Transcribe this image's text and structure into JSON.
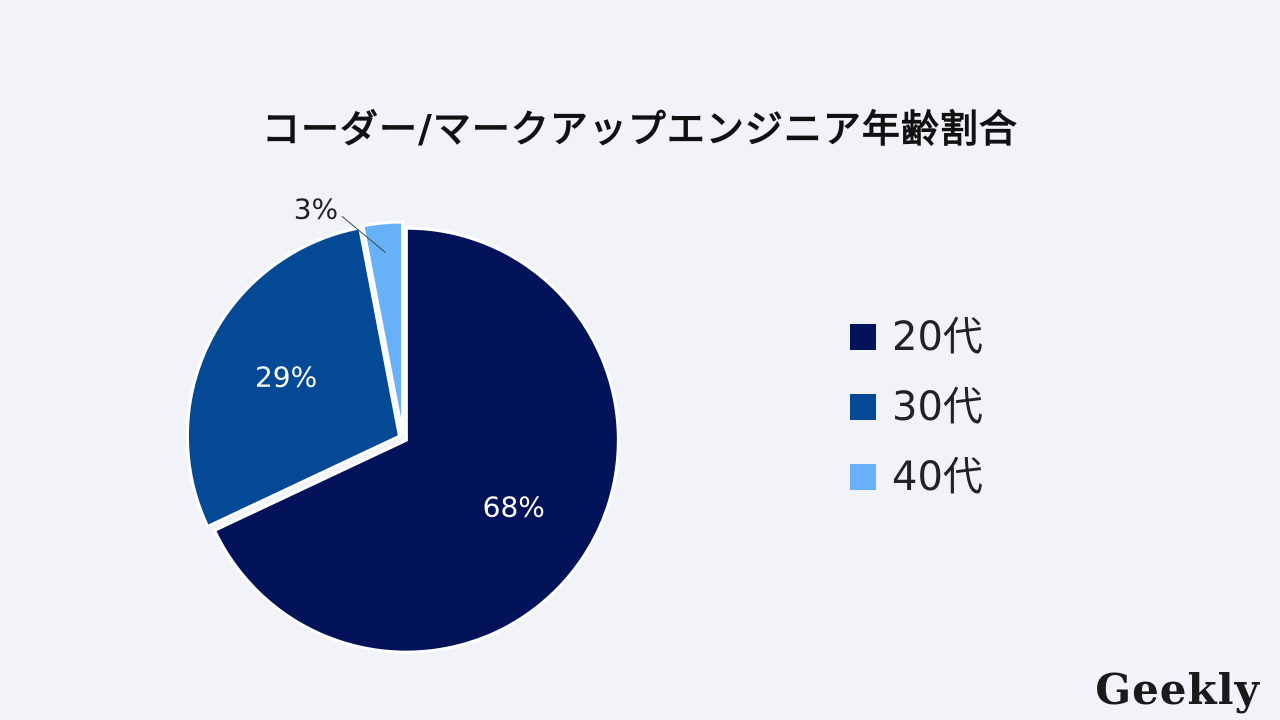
{
  "chart_data": {
    "type": "pie",
    "title": "コーダー/マークアップエンジニア年齢割合",
    "categories": [
      "20代",
      "30代",
      "40代"
    ],
    "values": [
      68,
      29,
      3
    ],
    "labels": [
      "68%",
      "29%",
      "3%"
    ],
    "colors": [
      "#02135a",
      "#034996",
      "#66b1f8"
    ],
    "label_colors": [
      "#ffffff",
      "#ffffff",
      "#222222"
    ],
    "legend_position": "right",
    "start_angle": "top",
    "direction": "clockwise"
  },
  "legend": {
    "items": [
      {
        "label": "20代",
        "color": "#02135a"
      },
      {
        "label": "30代",
        "color": "#034996"
      },
      {
        "label": "40代",
        "color": "#66b1f8"
      }
    ]
  },
  "brand": {
    "text": "Geekly"
  },
  "colors": {
    "background": "#f1f3f9",
    "separator": "#ffffff"
  }
}
